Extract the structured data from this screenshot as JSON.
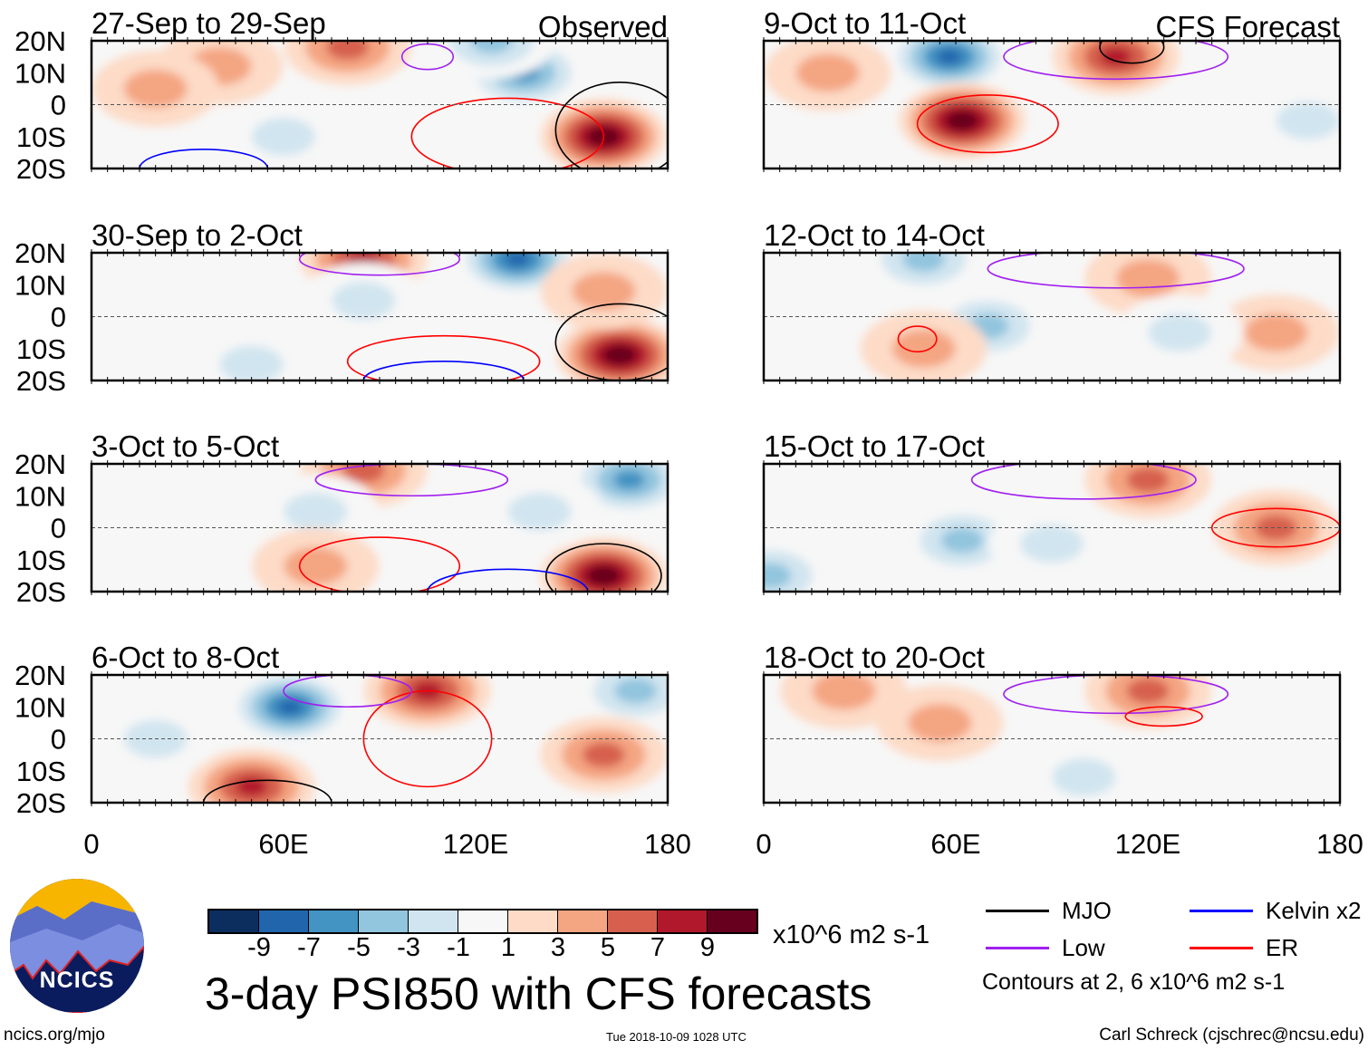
{
  "chart_data": {
    "type": "heatmap",
    "title": "3-day PSI850 with CFS forecasts",
    "units": "x10^6 m2 s-1",
    "xlim": [
      0,
      180
    ],
    "ylim": [
      -20,
      20
    ],
    "x_ticks": [
      "0",
      "60E",
      "120E",
      "180"
    ],
    "y_ticks": [
      "20N",
      "10N",
      "0",
      "10S",
      "20S"
    ],
    "colorbar": {
      "levels": [
        "-9",
        "-7",
        "-5",
        "-3",
        "-1",
        "1",
        "3",
        "5",
        "7",
        "9"
      ],
      "colors": [
        "#0b2e5f",
        "#2166ac",
        "#4393c3",
        "#92c5de",
        "#d1e5f0",
        "#f7f7f7",
        "#fddbc7",
        "#f4a582",
        "#d6604d",
        "#b2182b",
        "#67001f"
      ]
    },
    "panel_labels": {
      "observed": "Observed",
      "forecast": "CFS Forecast"
    },
    "panels": [
      {
        "title": "27-Sep to 29-Sep",
        "anomalies": [
          [
            135,
            10,
            -7
          ],
          [
            160,
            -10,
            10
          ],
          [
            80,
            18,
            5
          ],
          [
            125,
            20,
            -5
          ],
          [
            60,
            -10,
            -3
          ],
          [
            40,
            12,
            3
          ],
          [
            20,
            5,
            3
          ]
        ],
        "contours": [
          [
            "ER",
            130,
            -10,
            30,
            12
          ],
          [
            "MJO",
            165,
            -8,
            20,
            15
          ],
          [
            "Kelvin",
            35,
            -20,
            20,
            6
          ],
          [
            "Low",
            105,
            15,
            8,
            4
          ]
        ]
      },
      {
        "title": "9-Oct to 11-Oct",
        "anomalies": [
          [
            58,
            15,
            -9
          ],
          [
            62,
            -5,
            10
          ],
          [
            110,
            15,
            7
          ],
          [
            170,
            -5,
            -3
          ],
          [
            20,
            10,
            3
          ]
        ],
        "contours": [
          [
            "ER",
            70,
            -6,
            22,
            9
          ],
          [
            "Low",
            110,
            15,
            35,
            7
          ],
          [
            "MJO",
            115,
            18,
            10,
            5
          ]
        ]
      },
      {
        "title": "30-Sep to 2-Oct",
        "anomalies": [
          [
            133,
            18,
            -9
          ],
          [
            85,
            18,
            7
          ],
          [
            165,
            -12,
            10
          ],
          [
            50,
            -15,
            -3
          ],
          [
            85,
            5,
            -3
          ],
          [
            160,
            8,
            3
          ]
        ],
        "contours": [
          [
            "Low",
            90,
            18,
            25,
            5
          ],
          [
            "ER",
            110,
            -14,
            30,
            8
          ],
          [
            "Kelvin",
            110,
            -20,
            25,
            6
          ],
          [
            "MJO",
            165,
            -8,
            20,
            12
          ]
        ]
      },
      {
        "title": "12-Oct to 14-Oct",
        "anomalies": [
          [
            70,
            -3,
            -5
          ],
          [
            50,
            -10,
            3
          ],
          [
            50,
            18,
            -5
          ],
          [
            120,
            12,
            3
          ],
          [
            160,
            -5,
            3
          ],
          [
            130,
            -5,
            -3
          ]
        ],
        "contours": [
          [
            "Low",
            110,
            15,
            40,
            6
          ],
          [
            "ER",
            48,
            -7,
            6,
            4
          ]
        ]
      },
      {
        "title": "3-Oct to 5-Oct",
        "anomalies": [
          [
            85,
            18,
            5
          ],
          [
            168,
            15,
            -7
          ],
          [
            160,
            -15,
            10
          ],
          [
            70,
            5,
            -3
          ],
          [
            70,
            -12,
            3
          ],
          [
            140,
            5,
            -3
          ]
        ],
        "contours": [
          [
            "ER",
            90,
            -12,
            25,
            9
          ],
          [
            "Low",
            100,
            15,
            30,
            5
          ],
          [
            "MJO",
            160,
            -15,
            18,
            10
          ],
          [
            "Kelvin",
            130,
            -20,
            25,
            7
          ]
        ]
      },
      {
        "title": "15-Oct to 17-Oct",
        "anomalies": [
          [
            62,
            -4,
            -5
          ],
          [
            120,
            15,
            5
          ],
          [
            160,
            0,
            5
          ],
          [
            2,
            -15,
            -5
          ],
          [
            90,
            -5,
            -3
          ]
        ],
        "contours": [
          [
            "ER",
            160,
            0,
            20,
            6
          ],
          [
            "Low",
            100,
            15,
            35,
            6
          ]
        ]
      },
      {
        "title": "6-Oct to 8-Oct",
        "anomalies": [
          [
            62,
            10,
            -9
          ],
          [
            105,
            15,
            7
          ],
          [
            50,
            -15,
            7
          ],
          [
            170,
            15,
            -5
          ],
          [
            160,
            -5,
            5
          ],
          [
            20,
            0,
            -3
          ]
        ],
        "contours": [
          [
            "ER",
            105,
            0,
            20,
            15
          ],
          [
            "Low",
            80,
            15,
            20,
            5
          ],
          [
            "MJO",
            55,
            -20,
            20,
            7
          ]
        ]
      },
      {
        "title": "18-Oct to 20-Oct",
        "anomalies": [
          [
            120,
            15,
            5
          ],
          [
            100,
            -12,
            -3
          ],
          [
            55,
            5,
            3
          ],
          [
            25,
            15,
            3
          ]
        ],
        "contours": [
          [
            "Low",
            110,
            14,
            35,
            6
          ],
          [
            "ER",
            125,
            7,
            12,
            3
          ]
        ]
      }
    ],
    "contour_legend": [
      {
        "name": "MJO",
        "color": "#000000"
      },
      {
        "name": "Kelvin x2",
        "color": "#0000ff"
      },
      {
        "name": "Low",
        "color": "#a020f0"
      },
      {
        "name": "ER",
        "color": "#ff0000"
      }
    ],
    "contour_note": "Contours at 2, 6 x10^6 m2 s-1"
  },
  "footer": {
    "logo_text": "NCICS",
    "url": "ncics.org/mjo",
    "timestamp": "Tue 2018-10-09 1028 UTC",
    "author": "Carl Schreck (cjschrec@ncsu.edu)"
  }
}
